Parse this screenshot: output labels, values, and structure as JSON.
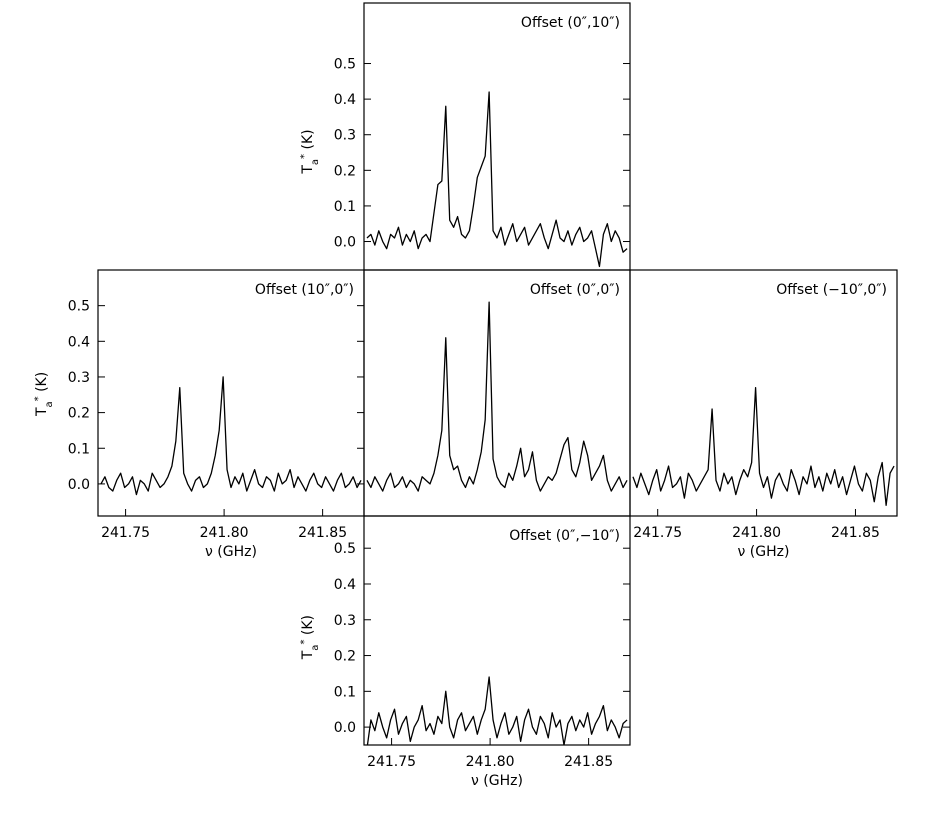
{
  "chart_data": [
    {
      "type": "line",
      "title": "Offset (0″,10″)",
      "ylabel": [
        "T",
        "a",
        "*",
        " (K)"
      ],
      "xlim": [
        241.736,
        241.871
      ],
      "ylim": [
        -0.08,
        0.67
      ],
      "yticks": [
        {
          "value": 0,
          "label": "0.0"
        },
        0.1,
        0.2,
        0.3,
        0.4,
        0.5
      ],
      "color": "#000000",
      "x": [
        241.7375,
        241.7395,
        241.7415,
        241.7435,
        241.7455,
        241.7475,
        241.7495,
        241.7515,
        241.7535,
        241.7555,
        241.7575,
        241.7595,
        241.7615,
        241.7635,
        241.7655,
        241.7675,
        241.7695,
        241.7715,
        241.7735,
        241.7755,
        241.7775,
        241.7795,
        241.7815,
        241.7835,
        241.7855,
        241.7875,
        241.7895,
        241.7915,
        241.7935,
        241.7955,
        241.7975,
        241.7995,
        241.8015,
        241.8035,
        241.8055,
        241.8075,
        241.8095,
        241.8115,
        241.8135,
        241.8155,
        241.8175,
        241.8195,
        241.8215,
        241.8235,
        241.8255,
        241.8275,
        241.8295,
        241.8315,
        241.8335,
        241.8355,
        241.8375,
        241.8395,
        241.8415,
        241.8435,
        241.8455,
        241.8475,
        241.8495,
        241.8515,
        241.8535,
        241.8555,
        241.8575,
        241.8595,
        241.8615,
        241.8635,
        241.8655,
        241.8675,
        241.8695
      ],
      "values": [
        0.01,
        0.02,
        -0.01,
        0.03,
        0.0,
        -0.02,
        0.02,
        0.01,
        0.04,
        -0.01,
        0.02,
        0.0,
        0.03,
        -0.02,
        0.01,
        0.02,
        0.0,
        0.08,
        0.16,
        0.17,
        0.38,
        0.06,
        0.04,
        0.07,
        0.02,
        0.01,
        0.03,
        0.1,
        0.18,
        0.21,
        0.24,
        0.42,
        0.03,
        0.01,
        0.04,
        -0.01,
        0.02,
        0.05,
        0.0,
        0.02,
        0.04,
        -0.01,
        0.01,
        0.03,
        0.05,
        0.01,
        -0.02,
        0.02,
        0.06,
        0.01,
        0.0,
        0.03,
        -0.01,
        0.02,
        0.04,
        0.0,
        0.01,
        0.03,
        -0.02,
        -0.07,
        0.02,
        0.05,
        0.0,
        0.03,
        0.01,
        -0.03,
        -0.02
      ]
    },
    {
      "type": "line",
      "title": "Offset (10″,0″)",
      "ylabel": [
        "T",
        "a",
        "*",
        " (K)"
      ],
      "xlabel": "ν (GHz)",
      "xlim": [
        241.736,
        241.871
      ],
      "ylim": [
        -0.09,
        0.6
      ],
      "xticks": [
        241.75,
        {
          "value": 241.8,
          "label": "241.80"
        },
        241.85
      ],
      "yticks": [
        {
          "value": 0,
          "label": "0.0"
        },
        0.1,
        0.2,
        0.3,
        0.4,
        0.5
      ],
      "color": "#000000",
      "x": [
        241.7375,
        241.7395,
        241.7415,
        241.7435,
        241.7455,
        241.7475,
        241.7495,
        241.7515,
        241.7535,
        241.7555,
        241.7575,
        241.7595,
        241.7615,
        241.7635,
        241.7655,
        241.7675,
        241.7695,
        241.7715,
        241.7735,
        241.7755,
        241.7775,
        241.7795,
        241.7815,
        241.7835,
        241.7855,
        241.7875,
        241.7895,
        241.7915,
        241.7935,
        241.7955,
        241.7975,
        241.7995,
        241.8015,
        241.8035,
        241.8055,
        241.8075,
        241.8095,
        241.8115,
        241.8135,
        241.8155,
        241.8175,
        241.8195,
        241.8215,
        241.8235,
        241.8255,
        241.8275,
        241.8295,
        241.8315,
        241.8335,
        241.8355,
        241.8375,
        241.8395,
        241.8415,
        241.8435,
        241.8455,
        241.8475,
        241.8495,
        241.8515,
        241.8535,
        241.8555,
        241.8575,
        241.8595,
        241.8615,
        241.8635,
        241.8655,
        241.8675,
        241.8695
      ],
      "values": [
        0.0,
        0.02,
        -0.01,
        -0.02,
        0.01,
        0.03,
        -0.01,
        0.0,
        0.02,
        -0.03,
        0.01,
        0.0,
        -0.02,
        0.03,
        0.01,
        -0.01,
        0.0,
        0.02,
        0.05,
        0.12,
        0.27,
        0.03,
        0.0,
        -0.02,
        0.01,
        0.02,
        -0.01,
        0.0,
        0.03,
        0.08,
        0.15,
        0.3,
        0.04,
        -0.01,
        0.02,
        0.0,
        0.03,
        -0.02,
        0.01,
        0.04,
        0.0,
        -0.01,
        0.02,
        0.01,
        -0.02,
        0.03,
        0.0,
        0.01,
        0.04,
        -0.01,
        0.02,
        0.0,
        -0.02,
        0.01,
        0.03,
        0.0,
        -0.01,
        0.02,
        0.0,
        -0.02,
        0.01,
        0.03,
        -0.01,
        0.0,
        0.02,
        -0.01,
        0.01
      ]
    },
    {
      "type": "line",
      "title": "Offset (0″,0″)",
      "xlim": [
        241.736,
        241.871
      ],
      "ylim": [
        -0.09,
        0.6
      ],
      "color": "#000000",
      "x": [
        241.7375,
        241.7395,
        241.7415,
        241.7435,
        241.7455,
        241.7475,
        241.7495,
        241.7515,
        241.7535,
        241.7555,
        241.7575,
        241.7595,
        241.7615,
        241.7635,
        241.7655,
        241.7675,
        241.7695,
        241.7715,
        241.7735,
        241.7755,
        241.7775,
        241.7795,
        241.7815,
        241.7835,
        241.7855,
        241.7875,
        241.7895,
        241.7915,
        241.7935,
        241.7955,
        241.7975,
        241.7995,
        241.8015,
        241.8035,
        241.8055,
        241.8075,
        241.8095,
        241.8115,
        241.8135,
        241.8155,
        241.8175,
        241.8195,
        241.8215,
        241.8235,
        241.8255,
        241.8275,
        241.8295,
        241.8315,
        241.8335,
        241.8355,
        241.8375,
        241.8395,
        241.8415,
        241.8435,
        241.8455,
        241.8475,
        241.8495,
        241.8515,
        241.8535,
        241.8555,
        241.8575,
        241.8595,
        241.8615,
        241.8635,
        241.8655,
        241.8675,
        241.8695
      ],
      "values": [
        0.01,
        -0.01,
        0.02,
        0.0,
        -0.02,
        0.01,
        0.03,
        -0.01,
        0.0,
        0.02,
        -0.01,
        0.01,
        0.0,
        -0.02,
        0.02,
        0.01,
        0.0,
        0.03,
        0.08,
        0.15,
        0.41,
        0.08,
        0.04,
        0.05,
        0.01,
        -0.01,
        0.02,
        0.0,
        0.04,
        0.09,
        0.18,
        0.51,
        0.07,
        0.02,
        0.0,
        -0.01,
        0.03,
        0.01,
        0.05,
        0.1,
        0.02,
        0.04,
        0.09,
        0.01,
        -0.02,
        0.0,
        0.02,
        0.01,
        0.03,
        0.07,
        0.11,
        0.13,
        0.04,
        0.02,
        0.06,
        0.12,
        0.08,
        0.01,
        0.03,
        0.05,
        0.08,
        0.01,
        -0.02,
        0.0,
        0.02,
        -0.01,
        0.01
      ]
    },
    {
      "type": "line",
      "title": "Offset (−10″,0″)",
      "xlabel": "ν (GHz)",
      "xlim": [
        241.736,
        241.871
      ],
      "ylim": [
        -0.09,
        0.6
      ],
      "xticks": [
        241.75,
        {
          "value": 241.8,
          "label": "241.80"
        },
        241.85
      ],
      "color": "#000000",
      "x": [
        241.7375,
        241.7395,
        241.7415,
        241.7435,
        241.7455,
        241.7475,
        241.7495,
        241.7515,
        241.7535,
        241.7555,
        241.7575,
        241.7595,
        241.7615,
        241.7635,
        241.7655,
        241.7675,
        241.7695,
        241.7715,
        241.7735,
        241.7755,
        241.7775,
        241.7795,
        241.7815,
        241.7835,
        241.7855,
        241.7875,
        241.7895,
        241.7915,
        241.7935,
        241.7955,
        241.7975,
        241.7995,
        241.8015,
        241.8035,
        241.8055,
        241.8075,
        241.8095,
        241.8115,
        241.8135,
        241.8155,
        241.8175,
        241.8195,
        241.8215,
        241.8235,
        241.8255,
        241.8275,
        241.8295,
        241.8315,
        241.8335,
        241.8355,
        241.8375,
        241.8395,
        241.8415,
        241.8435,
        241.8455,
        241.8475,
        241.8495,
        241.8515,
        241.8535,
        241.8555,
        241.8575,
        241.8595,
        241.8615,
        241.8635,
        241.8655,
        241.8675,
        241.8695
      ],
      "values": [
        0.02,
        -0.01,
        0.03,
        0.0,
        -0.03,
        0.01,
        0.04,
        -0.02,
        0.01,
        0.05,
        -0.01,
        0.0,
        0.02,
        -0.04,
        0.03,
        0.01,
        -0.02,
        0.0,
        0.02,
        0.04,
        0.21,
        0.01,
        -0.02,
        0.03,
        0.0,
        0.02,
        -0.03,
        0.01,
        0.04,
        0.02,
        0.06,
        0.27,
        0.03,
        -0.01,
        0.02,
        -0.04,
        0.01,
        0.03,
        0.0,
        -0.02,
        0.04,
        0.01,
        -0.03,
        0.02,
        0.0,
        0.05,
        -0.01,
        0.02,
        -0.02,
        0.03,
        0.0,
        0.04,
        -0.01,
        0.02,
        -0.03,
        0.01,
        0.05,
        0.0,
        -0.02,
        0.03,
        0.01,
        -0.05,
        0.02,
        0.06,
        -0.06,
        0.03,
        0.05
      ]
    },
    {
      "type": "line",
      "title": "Offset (0″,−10″)",
      "ylabel": [
        "T",
        "a",
        "*",
        " (K)"
      ],
      "xlabel": "ν (GHz)",
      "xlim": [
        241.736,
        241.871
      ],
      "ylim": [
        -0.05,
        0.59
      ],
      "xticks": [
        241.75,
        {
          "value": 241.8,
          "label": "241.80"
        },
        241.85
      ],
      "yticks": [
        {
          "value": 0,
          "label": "0.0"
        },
        0.1,
        0.2,
        0.3,
        0.4,
        0.5
      ],
      "color": "#000000",
      "x": [
        241.7375,
        241.7395,
        241.7415,
        241.7435,
        241.7455,
        241.7475,
        241.7495,
        241.7515,
        241.7535,
        241.7555,
        241.7575,
        241.7595,
        241.7615,
        241.7635,
        241.7655,
        241.7675,
        241.7695,
        241.7715,
        241.7735,
        241.7755,
        241.7775,
        241.7795,
        241.7815,
        241.7835,
        241.7855,
        241.7875,
        241.7895,
        241.7915,
        241.7935,
        241.7955,
        241.7975,
        241.7995,
        241.8015,
        241.8035,
        241.8055,
        241.8075,
        241.8095,
        241.8115,
        241.8135,
        241.8155,
        241.8175,
        241.8195,
        241.8215,
        241.8235,
        241.8255,
        241.8275,
        241.8295,
        241.8315,
        241.8335,
        241.8355,
        241.8375,
        241.8395,
        241.8415,
        241.8435,
        241.8455,
        241.8475,
        241.8495,
        241.8515,
        241.8535,
        241.8555,
        241.8575,
        241.8595,
        241.8615,
        241.8635,
        241.8655,
        241.8675,
        241.8695
      ],
      "values": [
        -0.06,
        0.02,
        -0.01,
        0.04,
        0.0,
        -0.03,
        0.02,
        0.05,
        -0.02,
        0.01,
        0.03,
        -0.04,
        0.0,
        0.02,
        0.06,
        -0.01,
        0.01,
        -0.02,
        0.03,
        0.01,
        0.1,
        0.0,
        -0.03,
        0.02,
        0.04,
        -0.01,
        0.01,
        0.03,
        -0.02,
        0.02,
        0.05,
        0.14,
        0.02,
        -0.03,
        0.01,
        0.04,
        -0.02,
        0.0,
        0.03,
        -0.04,
        0.02,
        0.05,
        0.0,
        -0.02,
        0.03,
        0.01,
        -0.03,
        0.04,
        0.0,
        0.02,
        -0.05,
        0.01,
        0.03,
        -0.01,
        0.02,
        0.0,
        0.04,
        -0.02,
        0.01,
        0.03,
        0.06,
        -0.01,
        0.02,
        0.0,
        -0.03,
        0.01,
        0.02
      ]
    }
  ]
}
